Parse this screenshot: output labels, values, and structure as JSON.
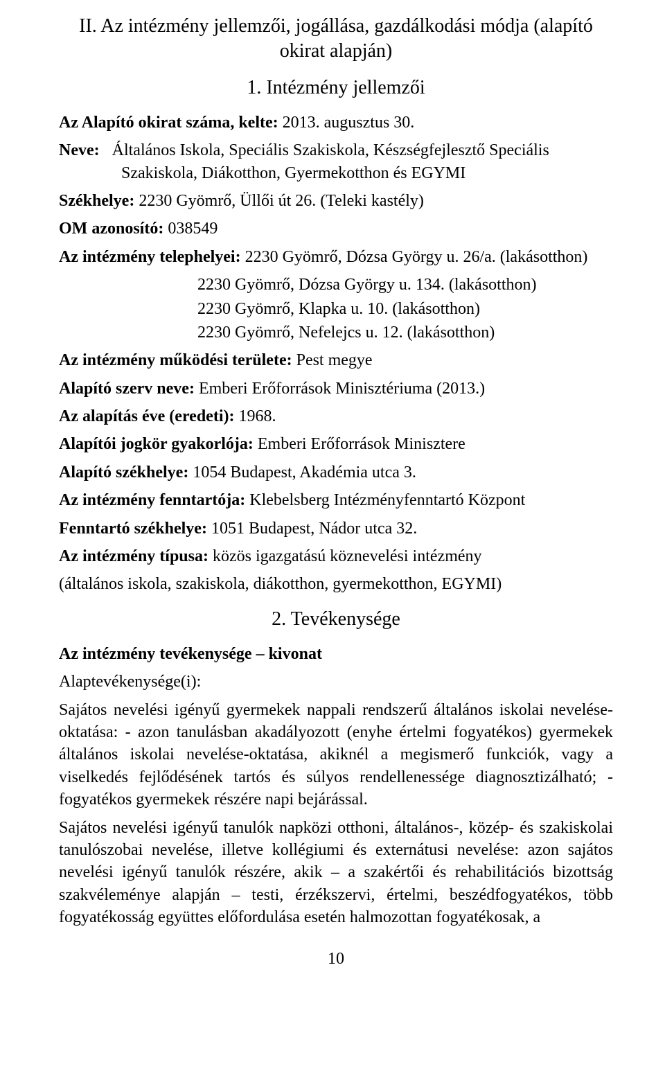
{
  "section_title": "II. Az intézmény jellemzői, jogállása, gazdálkodási módja (alapító okirat alapján)",
  "subsection1": "1. Intézmény jellemzői",
  "subsection2": "2. Tevékenysége",
  "founding_doc": {
    "label": "Az Alapító okirat száma, kelte:",
    "value": "2013. augusztus 30."
  },
  "name": {
    "label": "Neve:",
    "line1": "Általános Iskola, Speciális Szakiskola, Készségfejlesztő Speciális",
    "line2": "Szakiskola, Diákotthon, Gyermekotthon és EGYMI"
  },
  "seat": {
    "label": "Székhelye:",
    "value": "2230 Gyömrő, Üllői út 26. (Teleki kastély)"
  },
  "om_id": {
    "label": "OM azonosító:",
    "value": "038549"
  },
  "sites": {
    "label": "Az intézmény telephelyei:",
    "line1": "2230 Gyömrő, Dózsa György u. 26/a. (lakásotthon)",
    "line2": "2230 Gyömrő, Dózsa György u. 134. (lakásotthon)",
    "line3": "2230 Gyömrő, Klapka u. 10. (lakásotthon)",
    "line4": "2230 Gyömrő, Nefelejcs u. 12. (lakásotthon)"
  },
  "operating_area": {
    "label": "Az intézmény működési területe:",
    "value": "Pest megye"
  },
  "founder_name": {
    "label": "Alapító szerv neve:",
    "value": "Emberi Erőforrások Minisztériuma (2013.)"
  },
  "founding_year": {
    "label": "Az alapítás éve (eredeti):",
    "value": "1968."
  },
  "founder_rights": {
    "label": "Alapítói jogkör gyakorlója:",
    "value": "Emberi Erőforrások Minisztere"
  },
  "founder_seat": {
    "label": "Alapító székhelye:",
    "value": "1054 Budapest, Akadémia utca 3."
  },
  "maintainer": {
    "label": "Az intézmény fenntartója:",
    "value": "Klebelsberg Intézményfenntartó Központ"
  },
  "maintainer_seat": {
    "label": "Fenntartó székhelye:",
    "value": "1051 Budapest, Nádor utca 32."
  },
  "inst_type": {
    "label": "Az intézmény típusa:",
    "value": "közös igazgatású köznevelési intézmény"
  },
  "inst_type_paren": "(általános iskola, szakiskola, diákotthon, gyermekotthon, EGYMI)",
  "activity_header": "Az intézmény tevékenysége – kivonat",
  "activity_sublabel": "Alaptevékenysége(i):",
  "activity_para1": "Sajátos nevelési igényű gyermekek nappali rendszerű általános iskolai nevelése-oktatása: - azon tanulásban akadályozott (enyhe értelmi fogyatékos) gyermekek általános iskolai nevelése-oktatása, akiknél a megismerő funkciók, vagy a viselkedés fejlődésének tartós és súlyos rendellenessége diagnosztizálható; - fogyatékos gyermekek részére napi bejárással.",
  "activity_para2": "Sajátos nevelési igényű tanulók napközi otthoni, általános-, közép- és szakiskolai tanulószobai nevelése, illetve kollégiumi és externátusi nevelése: azon sajátos nevelési igényű tanulók részére, akik – a szakértői és rehabilitációs bizottság szakvéleménye alapján – testi, érzékszervi, értelmi, beszédfogyatékos, több fogyatékosság együttes előfordulása esetén halmozottan fogyatékosak, a",
  "page_number": "10"
}
